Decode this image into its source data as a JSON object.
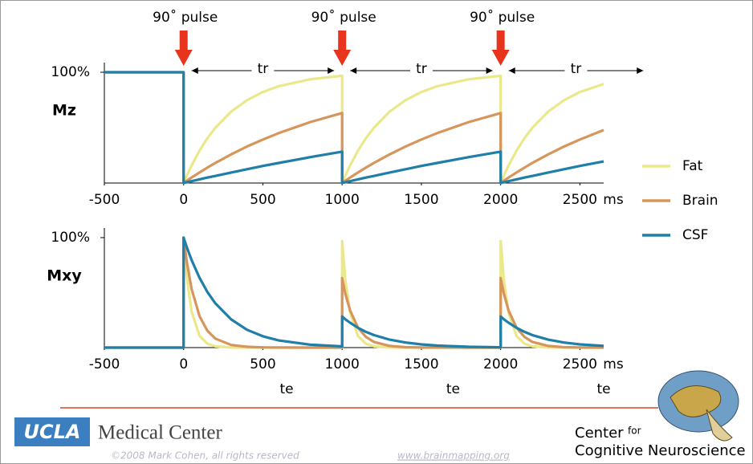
{
  "chart_data": [
    {
      "type": "line",
      "y_label": "Mz",
      "x_label": "ms",
      "legend": "right",
      "x": [
        -500,
        0,
        0,
        20,
        50,
        100,
        150,
        200,
        300,
        400,
        500,
        600,
        800,
        1000,
        1000,
        1020,
        1050,
        1100,
        1150,
        1200,
        1300,
        1400,
        1500,
        1600,
        1800,
        2000,
        2000,
        2020,
        2050,
        2100,
        2150,
        2200,
        2300,
        2400,
        2500,
        2650
      ],
      "series": [
        {
          "name": "Fat",
          "color": "#ebe88a",
          "values": [
            100,
            100,
            0,
            6.7,
            15.8,
            29.2,
            40.4,
            49.8,
            64.5,
            74.8,
            82.2,
            87.4,
            93.7,
            96.8,
            0,
            6.7,
            15.8,
            29.2,
            40.4,
            49.8,
            64.5,
            74.8,
            82.2,
            87.4,
            93.7,
            96.8,
            0,
            6.7,
            15.8,
            29.2,
            40.4,
            49.8,
            64.5,
            74.8,
            82.2,
            89.4
          ]
        },
        {
          "name": "Brain",
          "color": "#d6955a",
          "values": [
            100,
            100,
            0,
            2.0,
            4.9,
            9.5,
            13.9,
            18.1,
            25.9,
            33.0,
            39.3,
            45.1,
            55.1,
            63.2,
            0,
            2.0,
            4.9,
            9.5,
            13.9,
            18.1,
            25.9,
            33.0,
            39.3,
            45.1,
            55.1,
            63.2,
            0,
            2.0,
            4.9,
            9.5,
            13.9,
            18.1,
            25.9,
            33.0,
            39.3,
            47.8
          ]
        },
        {
          "name": "CSF",
          "color": "#1f7fa8",
          "values": [
            100,
            100,
            0,
            0.7,
            1.7,
            3.3,
            4.9,
            6.4,
            9.5,
            12.5,
            15.4,
            18.1,
            23.4,
            28.3,
            0,
            0.7,
            1.7,
            3.3,
            4.9,
            6.4,
            9.5,
            12.5,
            15.4,
            18.1,
            23.4,
            28.3,
            0,
            0.7,
            1.7,
            3.3,
            4.9,
            6.4,
            9.5,
            12.5,
            15.4,
            19.5
          ]
        }
      ],
      "xlim": [
        -500,
        2650
      ],
      "ylim": [
        0,
        100
      ],
      "xticks": [
        -500,
        0,
        500,
        1000,
        1500,
        2000,
        2500
      ],
      "yticks": [
        {
          "value": 100,
          "label": "100%"
        }
      ],
      "pulses": [
        {
          "text": "90˚ pulse",
          "x": 0
        },
        {
          "text": "90˚ pulse",
          "x": 1000
        },
        {
          "text": "90˚ pulse",
          "x": 2000
        }
      ],
      "spans": [
        {
          "text": "tr",
          "from": 0,
          "to": 1000
        },
        {
          "text": "tr",
          "from": 1000,
          "to": 2000
        },
        {
          "text": "tr",
          "from": 2000,
          "to": 2950
        }
      ]
    },
    {
      "type": "line",
      "y_label": "Mxy",
      "x_label": "ms",
      "x": [
        -500,
        0,
        0,
        20,
        50,
        100,
        150,
        200,
        300,
        400,
        500,
        600,
        800,
        1000,
        1000,
        1020,
        1050,
        1100,
        1150,
        1200,
        1300,
        1400,
        1500,
        1600,
        1800,
        2000,
        2000,
        2020,
        2050,
        2100,
        2150,
        2200,
        2300,
        2400,
        2500,
        2650
      ],
      "series": [
        {
          "color": "#ebe88a",
          "values": [
            0,
            0,
            100,
            64.1,
            32.9,
            10.8,
            3.6,
            1.2,
            0.1,
            0,
            0,
            0,
            0,
            0,
            96.8,
            62.0,
            31.8,
            10.5,
            3.5,
            1.2,
            0.1,
            0,
            0,
            0,
            0,
            0,
            96.8,
            62.0,
            31.8,
            10.5,
            3.5,
            1.2,
            0.1,
            0,
            0,
            0
          ]
        },
        {
          "color": "#d6955a",
          "values": [
            0,
            0,
            100,
            77.9,
            53.5,
            28.7,
            15.3,
            8.2,
            2.4,
            0.7,
            0.2,
            0.1,
            0,
            0,
            63.2,
            49.2,
            33.8,
            18.1,
            9.7,
            5.2,
            1.5,
            0.4,
            0.1,
            0.1,
            0,
            0,
            63.2,
            49.2,
            33.8,
            18.1,
            9.7,
            5.2,
            1.5,
            0.4,
            0.1,
            0
          ]
        },
        {
          "color": "#1f7fa8",
          "values": [
            0,
            0,
            100,
            91.3,
            79.7,
            63.5,
            50.6,
            40.3,
            25.6,
            16.2,
            10.3,
            6.5,
            2.6,
            1.1,
            28.3,
            25.8,
            22.6,
            18.0,
            14.3,
            11.4,
            7.2,
            4.6,
            2.9,
            1.8,
            0.7,
            0.3,
            28.3,
            25.8,
            22.6,
            18.0,
            14.3,
            11.4,
            7.2,
            4.6,
            2.9,
            1.5
          ]
        }
      ],
      "xlim": [
        -500,
        2650
      ],
      "ylim": [
        0,
        100
      ],
      "xticks": [
        -500,
        0,
        500,
        1000,
        1500,
        2000,
        2500
      ],
      "yticks": [
        {
          "value": 100,
          "label": "100%"
        }
      ],
      "annotations": [
        {
          "text": "te",
          "x": 650
        },
        {
          "text": "te",
          "x": 1700
        },
        {
          "text": "te",
          "x": 2650
        }
      ]
    }
  ],
  "footer": {
    "ucla": "UCLA",
    "medical_center": "Medical Center",
    "center": "Center",
    "for": "for",
    "cognitive": "Cognitive Neuroscience",
    "copyright": "©2008 Mark Cohen, all rights reserved",
    "url": "www.brainmapping.org"
  }
}
